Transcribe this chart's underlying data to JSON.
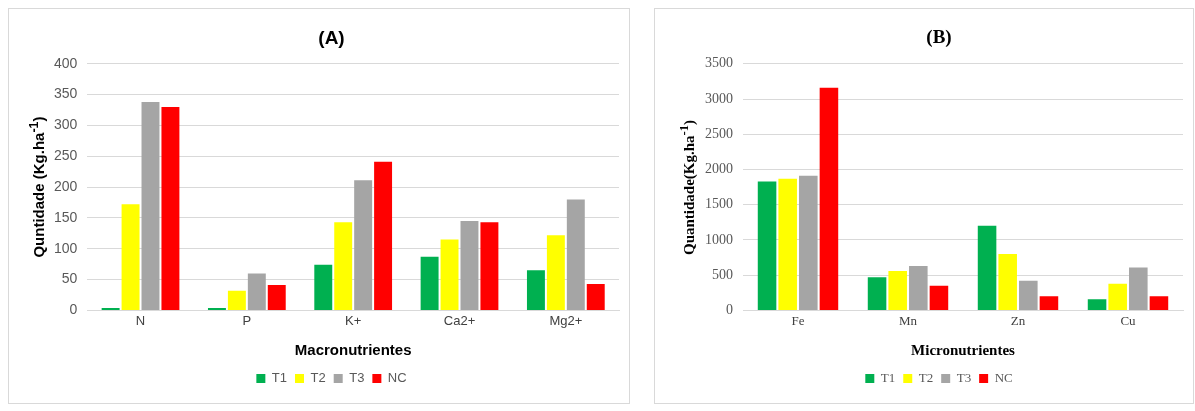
{
  "chart_data": [
    {
      "type": "bar",
      "title": "(A)",
      "xlabel": "Macronutrientes",
      "ylabel": "Quntidade  (Kg.ha$^{-1}$)",
      "categories": [
        "N",
        "P",
        "K+",
        "Ca2+",
        "Mg2+"
      ],
      "ylim": [
        0,
        400
      ],
      "yticks": [
        0,
        50,
        100,
        150,
        200,
        250,
        300,
        350,
        400
      ],
      "grid": "y",
      "legend": "bottom",
      "series": [
        {
          "name": "T1",
          "color": "#00b050",
          "values": [
            4,
            4,
            74,
            87,
            65
          ]
        },
        {
          "name": "T2",
          "color": "#ffff00",
          "values": [
            172,
            32,
            143,
            115,
            122
          ]
        },
        {
          "name": "T3",
          "color": "#a5a5a5",
          "values": [
            338,
            60,
            211,
            145,
            180
          ]
        },
        {
          "name": "NC",
          "color": "#ff0000",
          "values": [
            330,
            41,
            241,
            143,
            43
          ]
        }
      ]
    },
    {
      "type": "bar",
      "title": "(B)",
      "xlabel": "Micronutrientes",
      "ylabel": "Quantidade(Kg.ha$^{-1}$)",
      "categories": [
        "Fe",
        "Mn",
        "Zn",
        "Cu"
      ],
      "ylim": [
        0,
        3500
      ],
      "yticks": [
        0,
        500,
        1000,
        1500,
        2000,
        2500,
        3000,
        3500
      ],
      "grid": "y",
      "legend": "bottom",
      "series": [
        {
          "name": "T1",
          "color": "#00b050",
          "values": [
            1830,
            470,
            1200,
            160
          ]
        },
        {
          "name": "T2",
          "color": "#ffff00",
          "values": [
            1870,
            560,
            800,
            380
          ]
        },
        {
          "name": "T3",
          "color": "#a5a5a5",
          "values": [
            1910,
            630,
            420,
            610
          ]
        },
        {
          "name": "NC",
          "color": "#ff0000",
          "values": [
            3160,
            350,
            200,
            200
          ]
        }
      ]
    }
  ]
}
